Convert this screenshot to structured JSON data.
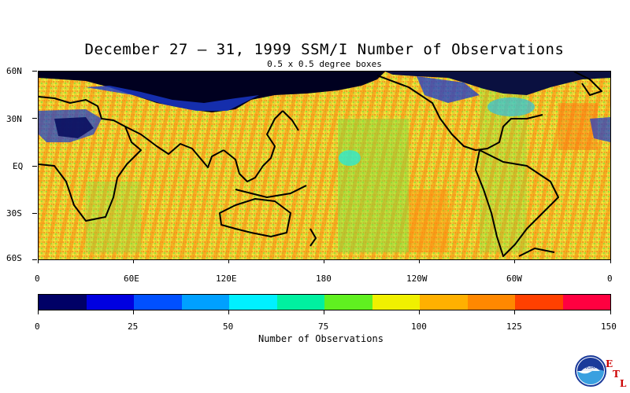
{
  "title": "December 27 – 31, 1999 SSM/I Number of Observations",
  "subtitle": "0.5 x 0.5 degree boxes",
  "lat_labels": [
    "60N",
    "30N",
    "EQ",
    "30S",
    "60S"
  ],
  "lon_labels": [
    "0",
    "60E",
    "120E",
    "180",
    "120W",
    "60W",
    "0"
  ],
  "colorbar": {
    "colors": [
      "#000066",
      "#0000e0",
      "#0050ff",
      "#00a0ff",
      "#00f0ff",
      "#00f0a0",
      "#60f020",
      "#f0f000",
      "#ffb000",
      "#ff8800",
      "#ff4000",
      "#ff0040"
    ],
    "tick_labels": [
      "0",
      "25",
      "50",
      "75",
      "100",
      "125",
      "150"
    ],
    "label": "Number of Observations"
  },
  "logo": {
    "name": "NOAA",
    "letters": [
      "E",
      "T",
      "L"
    ]
  },
  "chart_data": {
    "type": "heatmap",
    "title": "December 27 – 31, 1999 SSM/I Number of Observations",
    "subtitle": "0.5 x 0.5 degree boxes",
    "x_range": [
      "0",
      "0"
    ],
    "y_range": [
      "60S",
      "60N"
    ],
    "value_range": [
      0,
      150
    ],
    "colorbar_label": "Number of Observations"
  }
}
